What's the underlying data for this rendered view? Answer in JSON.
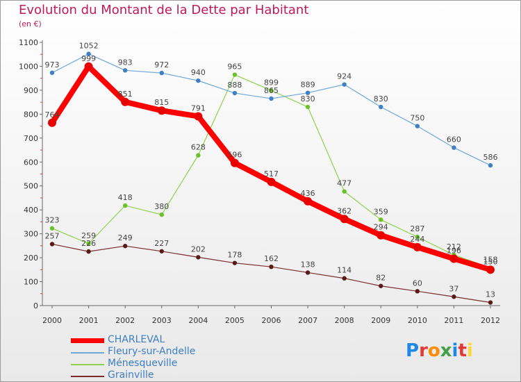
{
  "header": {
    "title": "Evolution du Montant de la Dette par Habitant",
    "subtitle": "(en €)"
  },
  "logo": {
    "text": "Proxiti",
    "colors": [
      "#1e88e5",
      "#e53935",
      "#fb8c00",
      "#43a047",
      "#1e88e5",
      "#e53935",
      "#fdd835"
    ]
  },
  "chart_data": {
    "type": "line",
    "title": "Evolution du Montant de la Dette par Habitant",
    "subtitle": "(en €)",
    "xlabel": "",
    "ylabel": "",
    "ylim": [
      0,
      1100
    ],
    "yticks": [
      0,
      100,
      200,
      300,
      400,
      500,
      600,
      700,
      800,
      900,
      1000,
      1100
    ],
    "grid": false,
    "legend_position": "bottom-left",
    "x": [
      "2000",
      "2001",
      "2002",
      "2003",
      "2004",
      "2005",
      "2006",
      "2007",
      "2008",
      "2009",
      "2010",
      "2011",
      "2012"
    ],
    "series": [
      {
        "name": "CHARLEVAL",
        "color": "#ff0000",
        "values": [
          764,
          999,
          851,
          815,
          791,
          596,
          517,
          436,
          362,
          294,
          244,
          196,
          150
        ]
      },
      {
        "name": "Fleury-sur-Andelle",
        "color": "#6fa8dc",
        "values": [
          973,
          1052,
          983,
          972,
          940,
          888,
          865,
          889,
          924,
          830,
          750,
          660,
          586
        ]
      },
      {
        "name": "Ménesqueville",
        "color": "#8fd14f",
        "values": [
          323,
          259,
          418,
          380,
          628,
          965,
          899,
          830,
          477,
          359,
          287,
          212,
          158
        ]
      },
      {
        "name": "Grainville",
        "color": "#7a2b2b",
        "values": [
          257,
          226,
          249,
          227,
          202,
          178,
          162,
          138,
          114,
          82,
          60,
          37,
          13
        ]
      }
    ]
  }
}
